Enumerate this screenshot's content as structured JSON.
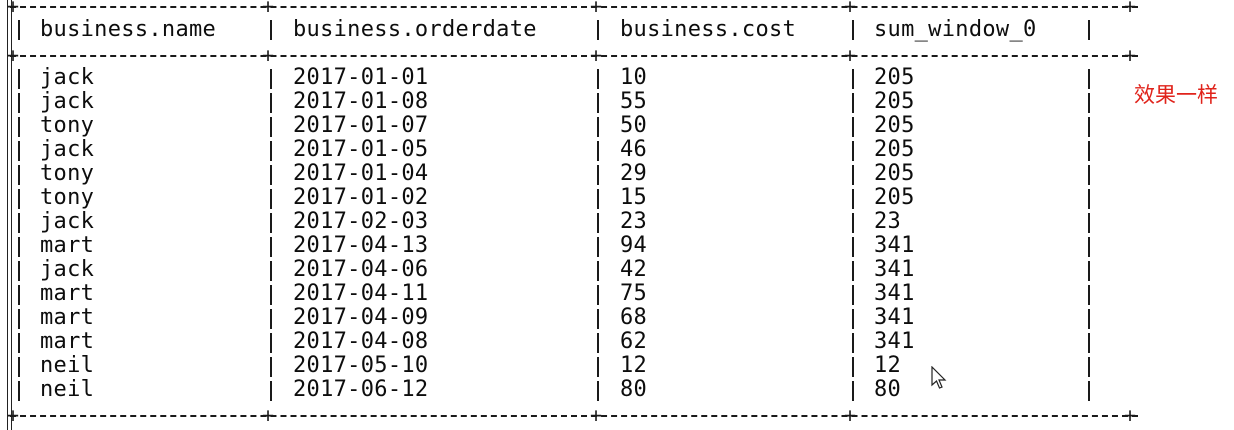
{
  "table": {
    "headers": [
      "business.name",
      "business.orderdate",
      "business.cost",
      "sum_window_0"
    ],
    "rows": [
      [
        "jack",
        "2017-01-01",
        "10",
        "205"
      ],
      [
        "jack",
        "2017-01-08",
        "55",
        "205"
      ],
      [
        "tony",
        "2017-01-07",
        "50",
        "205"
      ],
      [
        "jack",
        "2017-01-05",
        "46",
        "205"
      ],
      [
        "tony",
        "2017-01-04",
        "29",
        "205"
      ],
      [
        "tony",
        "2017-01-02",
        "15",
        "205"
      ],
      [
        "jack",
        "2017-02-03",
        "23",
        "23"
      ],
      [
        "mart",
        "2017-04-13",
        "94",
        "341"
      ],
      [
        "jack",
        "2017-04-06",
        "42",
        "341"
      ],
      [
        "mart",
        "2017-04-11",
        "75",
        "341"
      ],
      [
        "mart",
        "2017-04-09",
        "68",
        "341"
      ],
      [
        "mart",
        "2017-04-08",
        "62",
        "341"
      ],
      [
        "neil",
        "2017-05-10",
        "12",
        "12"
      ],
      [
        "neil",
        "2017-06-12",
        "80",
        "80"
      ]
    ]
  },
  "annotation": {
    "text": "效果一样",
    "color": "#e0231b"
  },
  "cursor": {
    "icon": "mouse-pointer-icon"
  }
}
